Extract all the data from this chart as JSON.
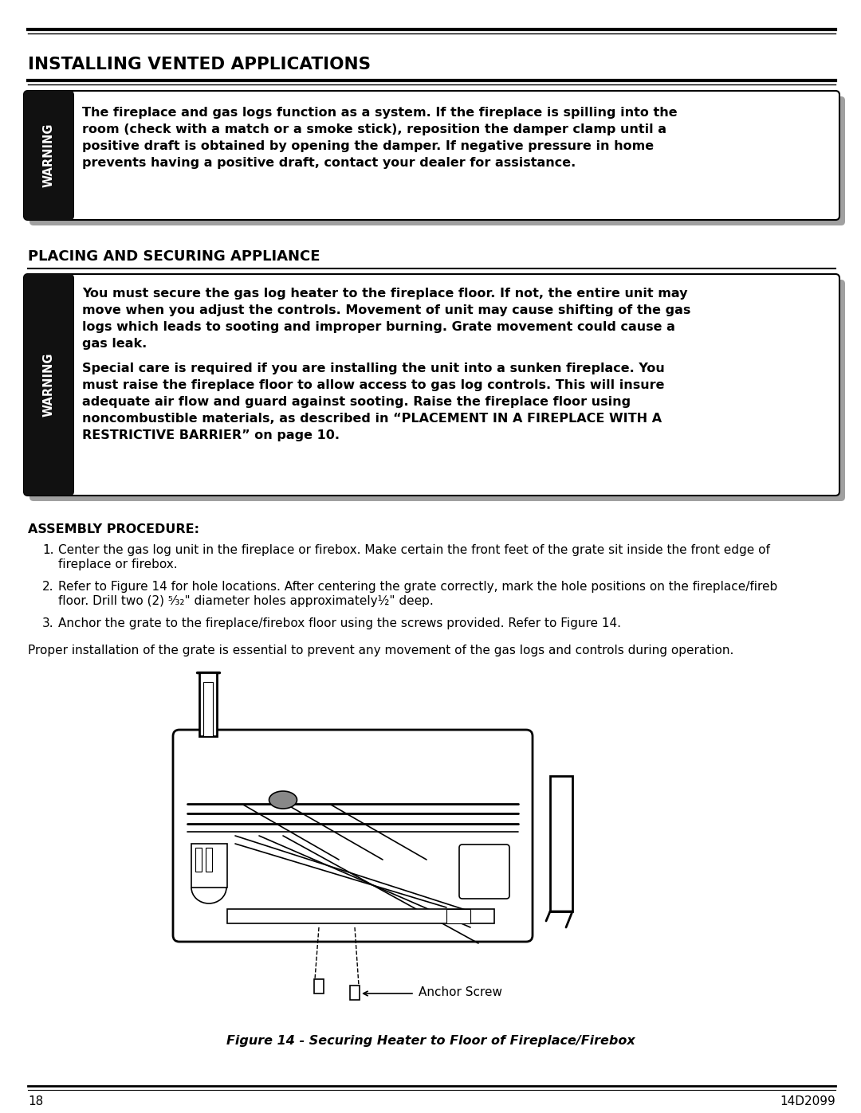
{
  "bg_color": "#ffffff",
  "title_section1": "INSTALLING VENTED APPLICATIONS",
  "title_section2": "PLACING AND SECURING APPLIANCE",
  "title_section3": "ASSEMBLY PROCEDURE:",
  "warning_text1_lines": [
    "The fireplace and gas logs function as a system. If the fireplace is spilling into the",
    "room (check with a match or a smoke stick), reposition the damper clamp until a",
    "positive draft is obtained by opening the damper. If negative pressure in home",
    "prevents having a positive draft, contact your dealer for assistance."
  ],
  "warning_text2_lines_a": [
    "You must secure the gas log heater to the fireplace floor. If not, the entire unit may",
    "move when you adjust the controls. Movement of unit may cause shifting of the gas",
    "logs which leads to sooting and improper burning. Grate movement could cause a",
    "gas leak."
  ],
  "warning_text2_lines_b": [
    "Special care is required if you are installing the unit into a sunken fireplace. You",
    "must raise the fireplace floor to allow access to gas log controls. This will insure",
    "adequate air flow and guard against sooting. Raise the fireplace floor using",
    "noncombustible materials, as described in “PLACEMENT IN A FIREPLACE WITH A",
    "RESTRICTIVE BARRIER” on page 10."
  ],
  "assembly_step1_lines": [
    "Center the gas log unit in the fireplace or firebox. Make certain the front feet of the grate sit inside the front edge of",
    "fireplace or firebox."
  ],
  "assembly_step2_lines": [
    "Refer to Figure 14 for hole locations. After centering the grate correctly, mark the hole positions on the fireplace/fireb",
    "floor. Drill two (2) ⁵⁄₃₂\" diameter holes approximately½\" deep."
  ],
  "assembly_step3_line": "Anchor the grate to the fireplace/firebox floor using the screws provided. Refer to Figure 14.",
  "assembly_proper": "Proper installation of the grate is essential to prevent any movement of the gas logs and controls during operation.",
  "figure_caption": "Figure 14 - Securing Heater to Floor of Fireplace/Firebox",
  "anchor_label": "Anchor Screw",
  "page_number": "18",
  "doc_number": "14D2099",
  "warning_label": "WARNING",
  "gray_shadow": "#aaaaaa"
}
